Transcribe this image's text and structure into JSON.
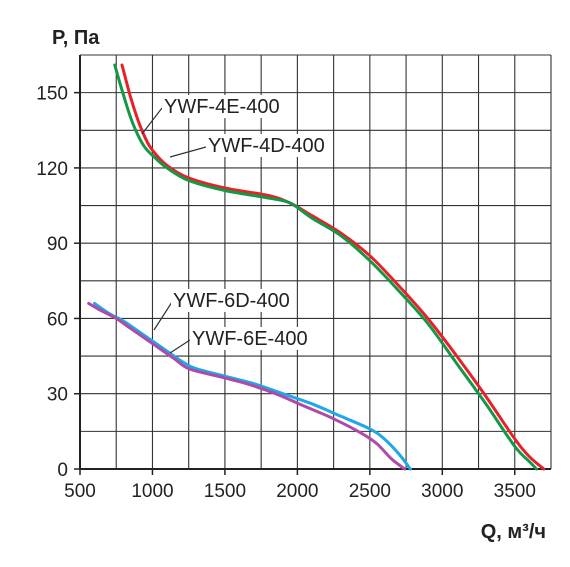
{
  "chart_data": {
    "type": "line",
    "ylabel": "P, Па",
    "xlabel": "Q, м³/ч",
    "xlim": [
      500,
      3750
    ],
    "ylim": [
      0,
      165
    ],
    "x_ticks": [
      500,
      1000,
      1500,
      2000,
      2500,
      3000,
      3500
    ],
    "y_ticks": [
      0,
      30,
      60,
      90,
      120,
      150
    ],
    "grid": true,
    "series": [
      {
        "name": "YWF-4E-400",
        "color": "#e8202a",
        "points": [
          [
            790,
            161
          ],
          [
            850,
            148
          ],
          [
            900,
            139
          ],
          [
            950,
            132
          ],
          [
            1000,
            127
          ],
          [
            1100,
            121
          ],
          [
            1250,
            116
          ],
          [
            1500,
            112
          ],
          [
            1800,
            109
          ],
          [
            1950,
            106
          ],
          [
            2100,
            101
          ],
          [
            2300,
            94
          ],
          [
            2500,
            85
          ],
          [
            2700,
            73
          ],
          [
            2900,
            60
          ],
          [
            3100,
            45
          ],
          [
            3300,
            29
          ],
          [
            3500,
            12
          ],
          [
            3600,
            5
          ],
          [
            3700,
            0
          ]
        ]
      },
      {
        "name": "YWF-4D-400",
        "color": "#149848",
        "points": [
          [
            740,
            161
          ],
          [
            800,
            149
          ],
          [
            850,
            140
          ],
          [
            900,
            133
          ],
          [
            950,
            128
          ],
          [
            1000,
            125
          ],
          [
            1100,
            120
          ],
          [
            1250,
            115
          ],
          [
            1500,
            111
          ],
          [
            1800,
            108
          ],
          [
            1950,
            106
          ],
          [
            2100,
            100
          ],
          [
            2300,
            93
          ],
          [
            2500,
            83
          ],
          [
            2700,
            71
          ],
          [
            2900,
            58
          ],
          [
            3100,
            42
          ],
          [
            3300,
            26
          ],
          [
            3500,
            9
          ],
          [
            3600,
            3
          ],
          [
            3650,
            0
          ]
        ]
      },
      {
        "name": "YWF-6D-400",
        "color": "#1ea8e8",
        "points": [
          [
            600,
            66
          ],
          [
            700,
            62
          ],
          [
            800,
            59
          ],
          [
            900,
            55
          ],
          [
            1000,
            51
          ],
          [
            1100,
            47
          ],
          [
            1200,
            43
          ],
          [
            1300,
            40
          ],
          [
            1500,
            37
          ],
          [
            1700,
            34
          ],
          [
            1900,
            30
          ],
          [
            2100,
            26
          ],
          [
            2300,
            21
          ],
          [
            2500,
            16
          ],
          [
            2600,
            12
          ],
          [
            2700,
            6
          ],
          [
            2780,
            0
          ]
        ]
      },
      {
        "name": "YWF-6E-400",
        "color": "#b04aa8",
        "points": [
          [
            560,
            66
          ],
          [
            650,
            63
          ],
          [
            750,
            60
          ],
          [
            850,
            56
          ],
          [
            950,
            52
          ],
          [
            1050,
            48
          ],
          [
            1150,
            44
          ],
          [
            1250,
            40
          ],
          [
            1450,
            37
          ],
          [
            1650,
            34
          ],
          [
            1850,
            30
          ],
          [
            2050,
            25
          ],
          [
            2250,
            20
          ],
          [
            2450,
            14
          ],
          [
            2550,
            10
          ],
          [
            2650,
            4
          ],
          [
            2740,
            0
          ]
        ]
      }
    ]
  }
}
